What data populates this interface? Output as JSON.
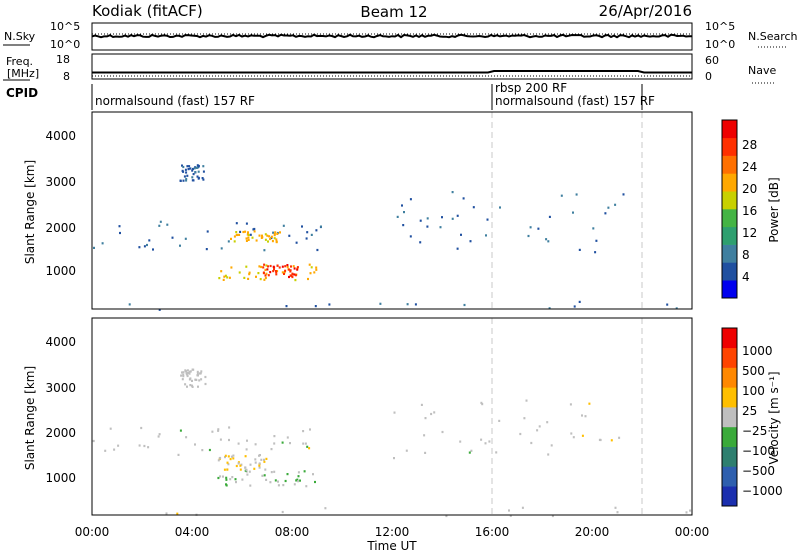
{
  "header": {
    "title_left": "Kodiak (fitACF)",
    "title_center": "Beam 12",
    "title_right": "26/Apr/2016"
  },
  "top_panels": {
    "nsky_label": "N.Sky",
    "nsky_ticks": [
      "10^5",
      "10^0"
    ],
    "nsearch_label": "N.Search",
    "nsearch_ticks": [
      "10^5",
      "10^0"
    ],
    "freq_label_1": "Freq.",
    "freq_label_2": "[MHz]",
    "freq_ticks": [
      "18",
      "8"
    ],
    "nave_label": "Nave",
    "nave_ticks": [
      "60",
      "0"
    ],
    "cpid_label": "CPID",
    "cpid_segments": [
      {
        "label": "normalsound (fast) 157 RF",
        "start_hr": 0,
        "end_hr": 16
      },
      {
        "label": "rbsp 200 RF",
        "start_hr": 16,
        "end_hr": 21.9
      },
      {
        "label": "normalsound (fast) 157 RF",
        "start_hr": 16,
        "end_hr": 21.9
      }
    ]
  },
  "panel1": {
    "ylabel": "Slant Range [km]",
    "yticks": [
      "4000",
      "3000",
      "2000",
      "1000"
    ],
    "colorbar_label": "Power [dB]",
    "colorbar_ticks": [
      "28",
      "24",
      "20",
      "16",
      "12",
      "8",
      "4"
    ],
    "colors": [
      "#0000ee",
      "#2050a0",
      "#3f7f9f",
      "#2e9f6f",
      "#44b444",
      "#c8d000",
      "#ffa800",
      "#ff7000",
      "#ff3000",
      "#ee0000"
    ]
  },
  "panel2": {
    "ylabel": "Slant Range [km]",
    "yticks": [
      "4000",
      "3000",
      "2000",
      "1000"
    ],
    "colorbar_label": "Velocity [m s⁻¹]",
    "colorbar_ticks": [
      "1000",
      "500",
      "100",
      "25",
      "−25",
      "−100",
      "−500",
      "−1000"
    ],
    "colors": [
      "#1b2fae",
      "#2e5fae",
      "#2e7f6f",
      "#3aaa3a",
      "#bfbfbf",
      "#ffbf00",
      "#ff8800",
      "#ff4400",
      "#ee0000"
    ]
  },
  "xaxis": {
    "xlabel": "Time UT",
    "ticks": [
      "00:00",
      "04:00",
      "08:00",
      "12:00",
      "16:00",
      "20:00",
      "00:00"
    ]
  },
  "chart_data": {
    "type": "heatmap",
    "title": "Kodiak (fitACF)",
    "subtitle": "Beam 12",
    "date": "26/Apr/2016",
    "xlabel": "Time UT",
    "ylabel": "Slant Range [km]",
    "xlim": [
      0,
      24
    ],
    "ylim": [
      0,
      4500
    ],
    "x_ticks": [
      "00:00",
      "04:00",
      "08:00",
      "12:00",
      "16:00",
      "20:00",
      "00:00"
    ],
    "y_ticks": [
      1000,
      2000,
      3000,
      4000
    ],
    "cpid_change_hours": [
      16,
      21.9
    ],
    "series": [
      {
        "name": "Power [dB]",
        "range": [
          0,
          32
        ],
        "features": [
          {
            "t_start": 0.0,
            "t_end": 9.2,
            "r_start": 1350,
            "r_end": 2050,
            "typical": 6
          },
          {
            "t_start": 5.0,
            "t_end": 9.0,
            "r_start": 680,
            "r_end": 1050,
            "typical": 20
          },
          {
            "t_start": 6.8,
            "t_end": 8.2,
            "r_start": 750,
            "r_end": 1050,
            "typical": 28
          },
          {
            "t_start": 5.5,
            "t_end": 7.5,
            "r_start": 1550,
            "r_end": 1800,
            "typical": 20
          },
          {
            "t_start": 3.5,
            "t_end": 4.5,
            "r_start": 2950,
            "r_end": 3350,
            "typical": 6
          },
          {
            "t_start": 12.0,
            "t_end": 21.5,
            "r_start": 1300,
            "r_end": 2700,
            "typical": 6
          },
          {
            "t_start": 0.0,
            "t_end": 24.0,
            "r_start": 0,
            "r_end": 200,
            "typical": 6
          }
        ]
      },
      {
        "name": "Velocity [m s^-1]",
        "range": [
          -1000,
          1000
        ],
        "features": [
          {
            "t_start": 0.0,
            "t_end": 9.2,
            "r_start": 1350,
            "r_end": 2050,
            "typical": 0
          },
          {
            "t_start": 5.0,
            "t_end": 9.0,
            "r_start": 680,
            "r_end": 1050,
            "typical": -100
          },
          {
            "t_start": 5.0,
            "t_end": 7.0,
            "r_start": 1050,
            "r_end": 1400,
            "typical": 100
          },
          {
            "t_start": 3.5,
            "t_end": 4.5,
            "r_start": 2950,
            "r_end": 3350,
            "typical": 0
          },
          {
            "t_start": 12.0,
            "t_end": 21.5,
            "r_start": 1300,
            "r_end": 2700,
            "typical": 0
          },
          {
            "t_start": 0.0,
            "t_end": 24.0,
            "r_start": 0,
            "r_end": 200,
            "typical": 0
          }
        ]
      }
    ]
  }
}
